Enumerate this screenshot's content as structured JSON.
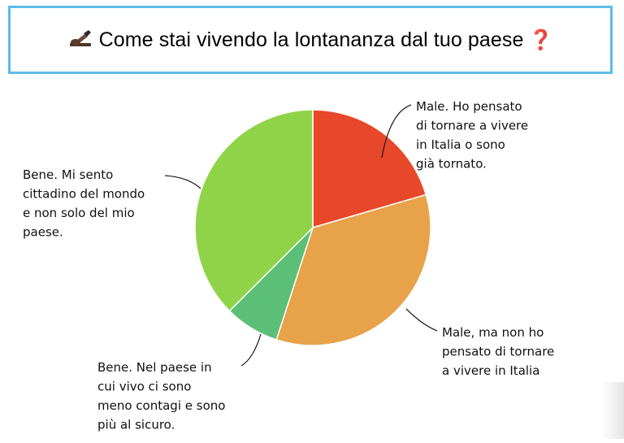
{
  "header": {
    "title": "Come stai vivendo la lontananza dal tuo paese",
    "icon_left": "writing-hand-icon",
    "icon_right": "question-mark-icon"
  },
  "chart_data": {
    "type": "pie",
    "title": "Come stai vivendo la lontananza dal tuo paese",
    "start_angle_deg": 0,
    "direction": "clockwise",
    "slices": [
      {
        "label": "Male. Ho pensato di tornare a vivere in Italia o sono già tornato.",
        "value": 20.5,
        "color": "#e8482a"
      },
      {
        "label": "Male, ma non ho pensato di tornare a vivere in Italia",
        "value": 34.5,
        "color": "#e8a24a"
      },
      {
        "label": "Bene. Nel paese in cui vivo ci sono meno contagi e sono più al sicuro.",
        "value": 7.5,
        "color": "#5cbf78"
      },
      {
        "label": "Bene. Mi sento cittadino del mondo e non solo del mio paese.",
        "value": 37.5,
        "color": "#8fd448"
      }
    ]
  }
}
